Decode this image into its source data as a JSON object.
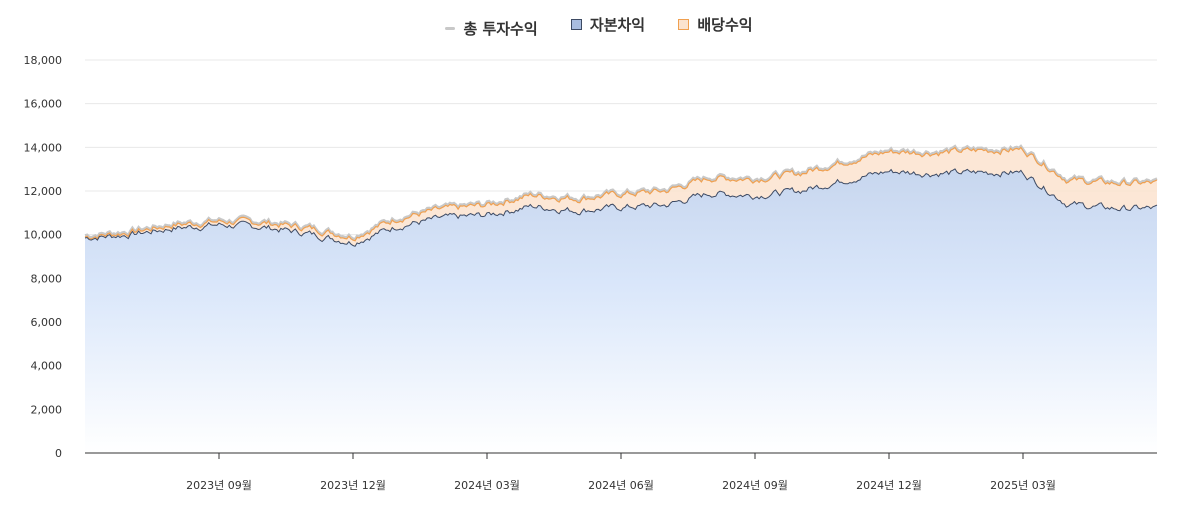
{
  "legend": {
    "total_label": "총 투자수익",
    "capital_label": "자본차익",
    "dividend_label": "배당수익"
  },
  "colors": {
    "total_line": "#c8c8c8",
    "capital_line": "#3d4a63",
    "capital_fill_top": "#c7d6ee",
    "capital_fill_bottom": "#ffffff",
    "dividend_line": "#f0a050",
    "dividend_fill": "#fbe3cf",
    "grid": "#e8e8e8",
    "axis": "#333333"
  },
  "chart_data": {
    "type": "area",
    "y_ticks": [
      "18,000",
      "16,000",
      "14,000",
      "12,000",
      "10,000",
      "8,000",
      "6,000",
      "4,000",
      "2,000",
      "0"
    ],
    "x_ticks": [
      "2023년 09월",
      "2023년 12월",
      "2024년 03월",
      "2024년 06월",
      "2024년 09월",
      "2024년 12월",
      "2025년 03월"
    ],
    "ylim": [
      0,
      18000
    ],
    "xlim": [
      "2023-06",
      "2025-05"
    ],
    "grid": true,
    "legend_position": "top-center",
    "x": [
      "2023-06",
      "2023-07",
      "2023-08",
      "2023-09",
      "2023-10",
      "2023-11",
      "2023-12",
      "2024-01",
      "2024-02",
      "2024-03",
      "2024-04",
      "2024-05",
      "2024-06",
      "2024-07",
      "2024-08",
      "2024-09",
      "2024-10",
      "2024-11",
      "2024-12",
      "2025-01",
      "2025-02",
      "2025-03",
      "2025-04",
      "2025-05"
    ],
    "series": [
      {
        "name": "자본차익",
        "values": [
          9850,
          10000,
          10300,
          10450,
          10350,
          10050,
          9650,
          10400,
          10750,
          10900,
          11300,
          11100,
          11250,
          11350,
          11900,
          11800,
          12000,
          12500,
          12900,
          12800,
          12850,
          12850,
          11400,
          11200
        ]
      },
      {
        "name": "배당수익",
        "values": [
          50,
          100,
          150,
          150,
          200,
          250,
          250,
          350,
          400,
          450,
          500,
          550,
          600,
          650,
          700,
          750,
          800,
          850,
          900,
          950,
          1000,
          1050,
          1100,
          1150
        ]
      },
      {
        "name": "총 투자수익",
        "values": [
          9900,
          10100,
          10450,
          10600,
          10550,
          10300,
          9900,
          10750,
          11150,
          11350,
          11800,
          11650,
          11850,
          12000,
          12600,
          12550,
          12800,
          13350,
          13800,
          13750,
          13850,
          13900,
          12500,
          12350
        ]
      }
    ]
  }
}
